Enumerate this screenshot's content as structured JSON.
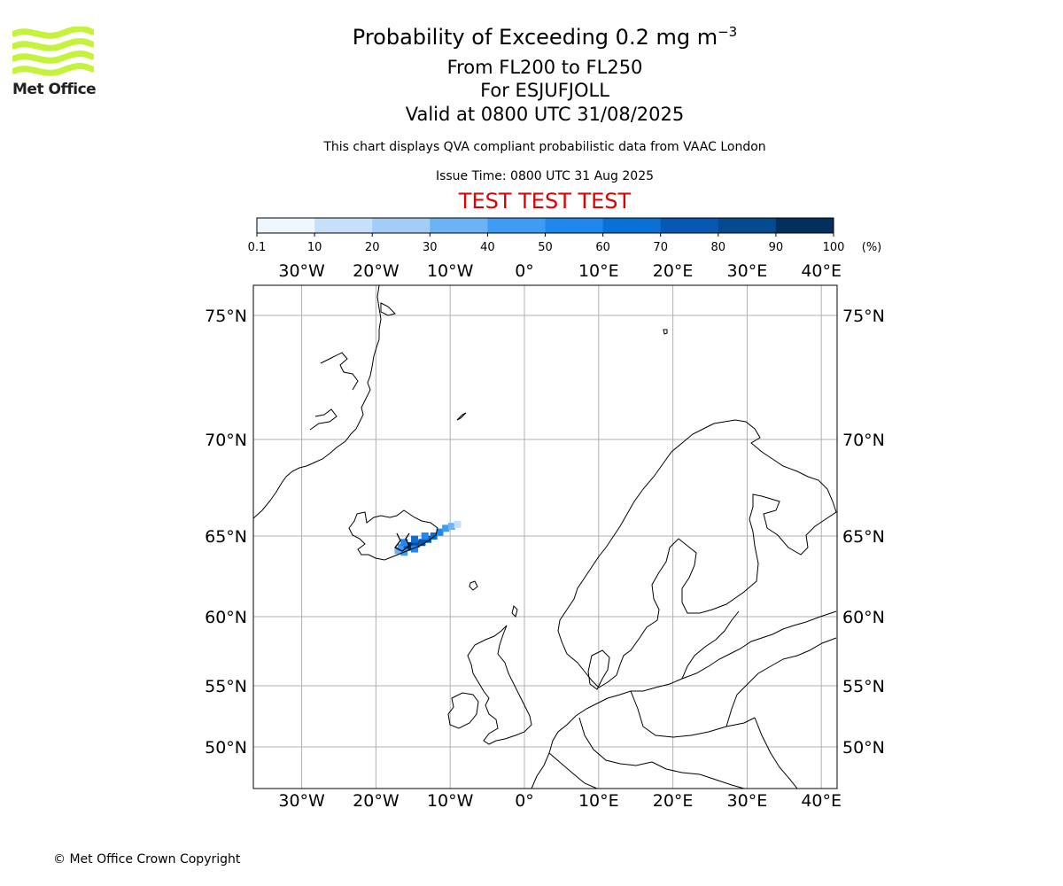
{
  "logo": {
    "text": "Met Office",
    "color": "#c5f23a"
  },
  "title": {
    "main": "Probability of Exceeding 0.2 mg m",
    "superscript": "−3"
  },
  "subtitle": {
    "levels": "From FL200 to FL250",
    "volcano": "For ESJUFJOLL",
    "valid": "Valid at 0800 UTC 31/08/2025"
  },
  "disclaimer": "This chart displays QVA compliant probabilistic data from VAAC London",
  "issue_time": "Issue Time: 0800 UTC 31 Aug 2025",
  "test_banner": "TEST TEST TEST",
  "colorbar": {
    "ticks": [
      "0.1",
      "10",
      "20",
      "30",
      "40",
      "50",
      "60",
      "70",
      "80",
      "90",
      "100"
    ],
    "unit": "(%)",
    "colors": [
      "#eef6ff",
      "#c6e0f9",
      "#a3cdf7",
      "#6cb3f5",
      "#3e9cf2",
      "#1f87ee",
      "#0a6fd6",
      "#0559b3",
      "#034a8f",
      "#022f5c"
    ]
  },
  "map": {
    "lon_ticks": [
      "30°W",
      "20°W",
      "10°W",
      "0°",
      "10°E",
      "20°E",
      "30°E",
      "40°E"
    ],
    "lat_ticks": [
      "75°N",
      "70°N",
      "65°N",
      "60°N",
      "55°N",
      "50°N"
    ],
    "lon_values": [
      -30,
      -20,
      -10,
      0,
      10,
      20,
      30,
      40
    ],
    "lat_values": [
      75,
      70,
      65,
      60,
      55,
      50
    ],
    "extent": {
      "lon": [
        -36.7,
        42.3
      ],
      "lat": [
        47.6,
        76.4
      ]
    }
  },
  "chart_data": {
    "type": "heatmap",
    "quantity": "Probability of exceeding 0.2 mg m-3",
    "value_range": [
      0.1,
      100
    ],
    "cells": [
      {
        "lon": -17.0,
        "lat": 64.1,
        "value": 35
      },
      {
        "lon": -16.6,
        "lat": 64.3,
        "value": 45
      },
      {
        "lon": -15.8,
        "lat": 64.3,
        "value": 75
      },
      {
        "lon": -15.2,
        "lat": 64.4,
        "value": 95
      },
      {
        "lon": -14.6,
        "lat": 64.5,
        "value": 85
      },
      {
        "lon": -13.8,
        "lat": 64.6,
        "value": 75
      },
      {
        "lon": -13.0,
        "lat": 64.8,
        "value": 70
      },
      {
        "lon": -12.2,
        "lat": 65.0,
        "value": 65
      },
      {
        "lon": -11.4,
        "lat": 65.2,
        "value": 55
      },
      {
        "lon": -10.6,
        "lat": 65.4,
        "value": 45
      },
      {
        "lon": -9.8,
        "lat": 65.5,
        "value": 35
      },
      {
        "lon": -9.0,
        "lat": 65.6,
        "value": 15
      },
      {
        "lon": -16.2,
        "lat": 64.6,
        "value": 55
      },
      {
        "lon": -14.8,
        "lat": 64.8,
        "value": 65
      },
      {
        "lon": -13.4,
        "lat": 65.0,
        "value": 55
      },
      {
        "lon": -16.2,
        "lat": 64.0,
        "value": 45
      },
      {
        "lon": -14.8,
        "lat": 64.2,
        "value": 55
      }
    ]
  },
  "copyright": "© Met Office Crown Copyright"
}
